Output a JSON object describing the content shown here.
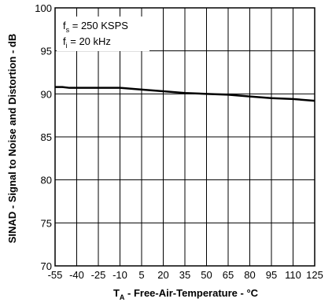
{
  "chart_data": {
    "type": "line",
    "title": "",
    "xlabel_main": "T",
    "xlabel_sub": "A",
    "xlabel_rest": " - Free-Air-Temperature - °C",
    "ylabel": "SINAD - Signal to Noise and Distortion - dB",
    "xlim": [
      -55,
      125
    ],
    "ylim": [
      70,
      100
    ],
    "x_ticks": [
      "-55",
      "-40",
      "-25",
      "-10",
      "5",
      "20",
      "35",
      "50",
      "65",
      "80",
      "95",
      "110",
      "125"
    ],
    "y_ticks": [
      "70",
      "75",
      "80",
      "85",
      "90",
      "95",
      "100"
    ],
    "grid": true,
    "annotations": [
      {
        "main": "f",
        "sub": "s",
        "rest": " = 250 KSPS"
      },
      {
        "main": "f",
        "sub": "i",
        "rest": " = 20 kHz"
      }
    ],
    "series": [
      {
        "x": [
          -55,
          -50,
          -45,
          -40,
          -25,
          -10,
          5,
          20,
          35,
          50,
          65,
          80,
          95,
          110,
          125
        ],
        "y": [
          90.8,
          90.8,
          90.7,
          90.7,
          90.7,
          90.7,
          90.5,
          90.3,
          90.1,
          90.0,
          89.9,
          89.7,
          89.5,
          89.4,
          89.2
        ]
      }
    ]
  }
}
